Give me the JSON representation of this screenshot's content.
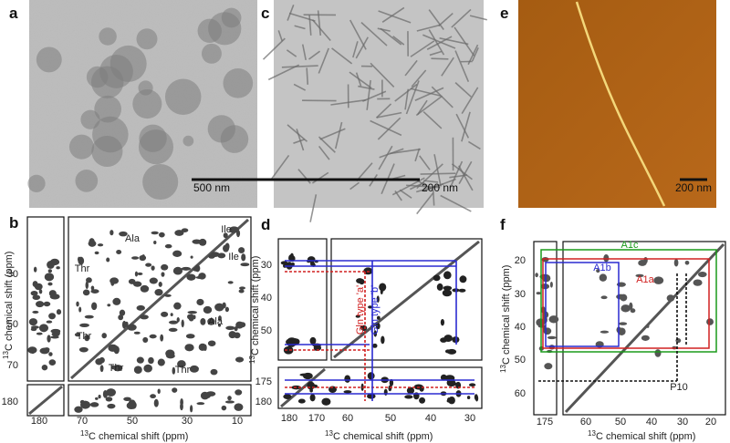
{
  "panels": {
    "a": {
      "label": "a",
      "scale_bar": "500 nm"
    },
    "c": {
      "label": "c",
      "scale_bar": "200 nm"
    },
    "e": {
      "label": "e",
      "scale_bar": "200 nm"
    },
    "b": {
      "label": "b",
      "y_ticks": [
        "30",
        "50",
        "70",
        "180"
      ],
      "x_ticks": [
        "180",
        "70",
        "50",
        "30",
        "10"
      ],
      "annotations": [
        "Ala",
        "Ile",
        "Thr",
        "Ile",
        "Ala",
        "Thr",
        "Thr",
        "Thr"
      ]
    },
    "d": {
      "label": "d",
      "y_ticks": [
        "30",
        "40",
        "50",
        "175",
        "180"
      ],
      "x_ticks": [
        "180",
        "170",
        "60",
        "50",
        "40",
        "30"
      ],
      "annotations": [
        "Gln type 'a'",
        "Gln type 'b'"
      ]
    },
    "f": {
      "label": "f",
      "y_ticks": [
        "20",
        "30",
        "40",
        "50",
        "60"
      ],
      "x_ticks": [
        "175",
        "60",
        "50",
        "40",
        "30",
        "20"
      ],
      "annotations": [
        "A1c",
        "A1b",
        "A1a",
        "P10"
      ]
    }
  },
  "axis_label": {
    "isotope": "13",
    "text": "C chemical shift (ppm)"
  }
}
